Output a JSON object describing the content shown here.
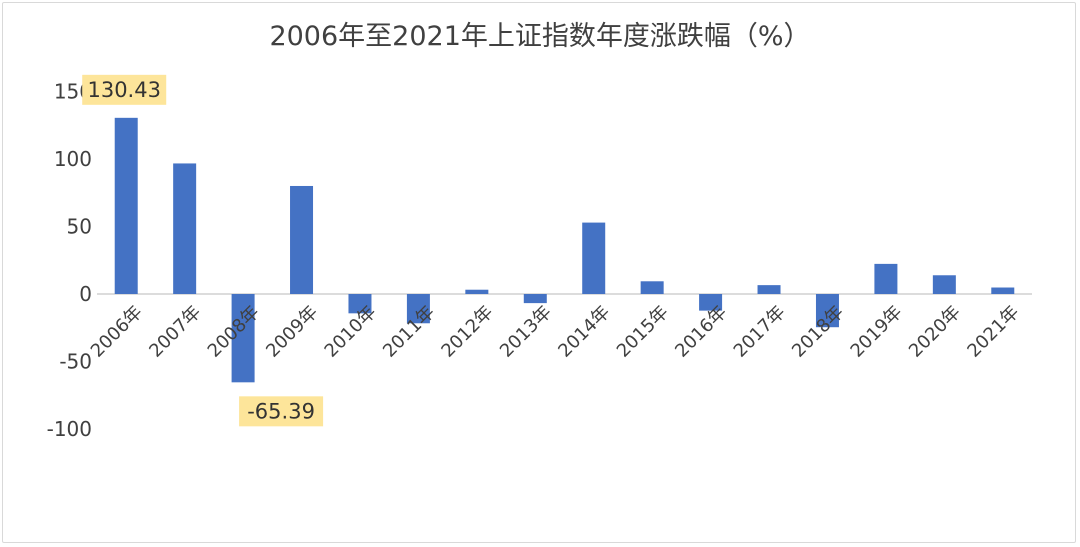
{
  "chart_data": {
    "type": "bar",
    "title": "2006年至2021年上证指数年度涨跌幅（%）",
    "categories": [
      "2006年",
      "2007年",
      "2008年",
      "2009年",
      "2010年",
      "2011年",
      "2012年",
      "2013年",
      "2014年",
      "2015年",
      "2016年",
      "2017年",
      "2018年",
      "2019年",
      "2020年",
      "2021年"
    ],
    "values": [
      130.43,
      96.66,
      -65.39,
      79.98,
      -14.31,
      -21.68,
      3.17,
      -6.75,
      52.87,
      9.41,
      -12.31,
      6.56,
      -24.59,
      22.3,
      13.87,
      4.8
    ],
    "ylim": [
      -100,
      150
    ],
    "yticks": [
      150,
      100,
      50,
      0,
      -50,
      -100
    ],
    "grid": false,
    "bar_color": "#4472c4",
    "annotations": [
      {
        "label": "130.43",
        "category": "2006年",
        "value": 130.43,
        "highlight": "#fde59a"
      },
      {
        "label": "-65.39",
        "category": "2008年",
        "value": -65.39,
        "highlight": "#fde59a"
      }
    ]
  }
}
